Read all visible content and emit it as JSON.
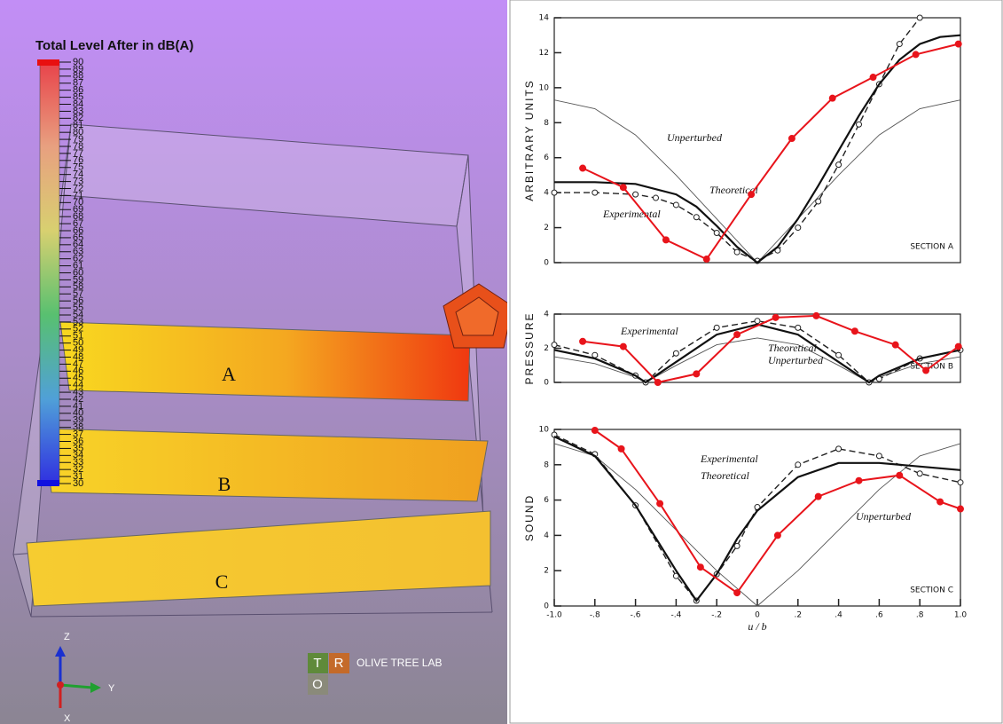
{
  "viewer": {
    "title": "Total Level After in dB(A)",
    "colorbar": {
      "lim": [
        30,
        90
      ],
      "ticks": [
        30,
        31,
        32,
        33,
        34,
        35,
        36,
        37,
        38,
        39,
        40,
        41,
        42,
        43,
        44,
        45,
        46,
        47,
        48,
        49,
        50,
        51,
        52,
        53,
        54,
        55,
        56,
        57,
        58,
        59,
        60,
        61,
        62,
        63,
        64,
        65,
        66,
        67,
        68,
        69,
        70,
        71,
        72,
        73,
        74,
        75,
        76,
        77,
        78,
        79,
        80,
        81,
        82,
        83,
        84,
        85,
        86,
        87,
        88,
        89,
        90
      ]
    },
    "surfaces": [
      "A",
      "B",
      "C"
    ],
    "axes": [
      "Z",
      "Y",
      "X"
    ],
    "logo": {
      "letters": [
        "T",
        "R",
        "O"
      ],
      "text": "OLIVE TREE LAB"
    }
  },
  "chart_data": [
    {
      "type": "line",
      "ylabel": "ARBITRARY UNITS",
      "label": "SECTION A",
      "xlim": [
        -1,
        1
      ],
      "ylim": [
        0,
        14
      ],
      "yticks": [
        0,
        2,
        4,
        6,
        8,
        10,
        12,
        14
      ],
      "series": [
        {
          "color": "#e8141b",
          "width": 2,
          "markers": "filled",
          "x": [
            -0.86,
            -0.66,
            -0.45,
            -0.25,
            -0.03,
            0.17,
            0.37,
            0.57,
            0.78,
            0.99
          ],
          "values": [
            5.4,
            4.3,
            1.3,
            0.2,
            3.9,
            7.1,
            9.4,
            10.6,
            11.9,
            12.5
          ]
        },
        {
          "name": "Theoretical",
          "color": "#111111",
          "width": 2.2,
          "x": [
            -1,
            -0.8,
            -0.6,
            -0.4,
            -0.3,
            -0.2,
            -0.1,
            0,
            0.1,
            0.2,
            0.3,
            0.4,
            0.5,
            0.6,
            0.7,
            0.8,
            0.9,
            1
          ],
          "values": [
            4.6,
            4.6,
            4.5,
            3.9,
            3.2,
            2.1,
            0.9,
            0,
            0.9,
            2.5,
            4.4,
            6.4,
            8.4,
            10.2,
            11.6,
            12.5,
            12.9,
            13
          ]
        },
        {
          "name": "Experimental",
          "color": "#222222",
          "width": 1.4,
          "dash": true,
          "markers": "open",
          "x": [
            -1,
            -0.8,
            -0.6,
            -0.5,
            -0.4,
            -0.3,
            -0.2,
            -0.1,
            0,
            0.1,
            0.2,
            0.3,
            0.4,
            0.5,
            0.6,
            0.7,
            0.8
          ],
          "values": [
            4,
            4,
            3.9,
            3.7,
            3.3,
            2.6,
            1.7,
            0.6,
            0.1,
            0.7,
            2,
            3.5,
            5.6,
            7.9,
            10.2,
            12.5,
            14
          ]
        },
        {
          "name": "Unperturbed",
          "color": "#555555",
          "width": 0.9,
          "x": [
            -1,
            -0.8,
            -0.6,
            -0.4,
            -0.2,
            0,
            0.2,
            0.4,
            0.6,
            0.8,
            1
          ],
          "values": [
            9.3,
            8.8,
            7.3,
            5,
            2.5,
            0,
            2.5,
            5,
            7.3,
            8.8,
            9.3
          ]
        }
      ]
    },
    {
      "type": "line",
      "ylabel": "PRESSURE",
      "label": "SECTION B",
      "xlim": [
        -1,
        1
      ],
      "ylim": [
        0,
        4
      ],
      "yticks": [
        0,
        2,
        4
      ],
      "series": [
        {
          "color": "#e8141b",
          "width": 2,
          "markers": "filled",
          "x": [
            -0.86,
            -0.66,
            -0.49,
            -0.3,
            -0.1,
            0.09,
            0.29,
            0.48,
            0.68,
            0.83,
            0.99
          ],
          "values": [
            2.4,
            2.1,
            0,
            0.5,
            2.8,
            3.8,
            3.9,
            3,
            2.2,
            0.7,
            2.1
          ]
        },
        {
          "name": "Theoretical",
          "color": "#111111",
          "width": 2.2,
          "x": [
            -1,
            -0.8,
            -0.6,
            -0.55,
            -0.4,
            -0.2,
            0,
            0.2,
            0.4,
            0.55,
            0.6,
            0.8,
            1
          ],
          "values": [
            1.9,
            1.4,
            0.4,
            0,
            1.2,
            2.8,
            3.4,
            2.8,
            1.2,
            0,
            0.4,
            1.4,
            1.9
          ]
        },
        {
          "name": "Experimental",
          "color": "#222222",
          "width": 1.4,
          "dash": true,
          "markers": "open",
          "x": [
            -1,
            -0.8,
            -0.6,
            -0.55,
            -0.4,
            -0.2,
            0,
            0.2,
            0.4,
            0.55,
            0.6,
            0.8,
            1
          ],
          "values": [
            2.2,
            1.6,
            0.4,
            0,
            1.7,
            3.2,
            3.6,
            3.2,
            1.6,
            0,
            0.2,
            1.4,
            1.9
          ]
        },
        {
          "name": "Unperturbed",
          "color": "#555555",
          "width": 0.9,
          "x": [
            -1,
            -0.8,
            -0.6,
            -0.55,
            -0.4,
            -0.2,
            0,
            0.2,
            0.4,
            0.55,
            0.6,
            0.8,
            1
          ],
          "values": [
            1.5,
            1.1,
            0.3,
            0,
            1,
            2.2,
            2.6,
            2.2,
            1,
            0,
            0.3,
            1.1,
            1.5
          ]
        }
      ]
    },
    {
      "type": "line",
      "ylabel": "SOUND",
      "label": "SECTION C",
      "xlabel": "u / b",
      "xlim": [
        -1,
        1
      ],
      "ylim": [
        0,
        10
      ],
      "yticks": [
        0,
        2,
        4,
        6,
        8,
        10
      ],
      "xticks": [
        {
          "value": -1,
          "label": "-1.0"
        },
        {
          "value": -0.8,
          "label": "-.8"
        },
        {
          "value": -0.6,
          "label": "-.6"
        },
        {
          "value": -0.4,
          "label": "-.4"
        },
        {
          "value": -0.2,
          "label": "-.2"
        },
        0,
        {
          "value": 0.2,
          "label": ".2"
        },
        {
          "value": 0.4,
          "label": ".4"
        },
        {
          "value": 0.6,
          "label": ".6"
        },
        {
          "value": 0.8,
          "label": ".8"
        },
        {
          "value": 1,
          "label": "1.0"
        }
      ],
      "series": [
        {
          "color": "#e8141b",
          "width": 2,
          "markers": "filled",
          "x": [
            -0.8,
            -0.67,
            -0.48,
            -0.28,
            -0.1,
            0.1,
            0.3,
            0.5,
            0.7,
            0.9,
            1
          ],
          "values": [
            9.95,
            8.9,
            5.8,
            2.2,
            0.75,
            4,
            6.2,
            7.1,
            7.4,
            5.9,
            5.5
          ]
        },
        {
          "name": "Theoretical",
          "color": "#111111",
          "width": 2.2,
          "x": [
            -1,
            -0.8,
            -0.6,
            -0.4,
            -0.3,
            -0.2,
            -0.1,
            0,
            0.2,
            0.4,
            0.6,
            0.8,
            1
          ],
          "values": [
            9.6,
            8.5,
            5.7,
            2,
            0.3,
            1.8,
            3.8,
            5.4,
            7.3,
            8.1,
            8.1,
            7.9,
            7.7
          ]
        },
        {
          "name": "Experimental",
          "color": "#222222",
          "width": 1.4,
          "dash": true,
          "markers": "open",
          "x": [
            -1,
            -0.8,
            -0.6,
            -0.4,
            -0.3,
            -0.2,
            -0.1,
            0,
            0.2,
            0.4,
            0.6,
            0.8,
            1
          ],
          "values": [
            9.7,
            8.6,
            5.7,
            1.7,
            0.3,
            1.8,
            3.4,
            5.6,
            8,
            8.9,
            8.5,
            7.5,
            7
          ]
        },
        {
          "name": "Unperturbed",
          "color": "#555555",
          "width": 0.9,
          "x": [
            -1,
            -0.8,
            -0.6,
            -0.4,
            -0.2,
            0,
            0.2,
            0.4,
            0.6,
            0.8,
            1
          ],
          "values": [
            9.2,
            8.5,
            6.6,
            4.3,
            2,
            0,
            2,
            4.3,
            6.6,
            8.5,
            9.2
          ]
        }
      ]
    }
  ]
}
